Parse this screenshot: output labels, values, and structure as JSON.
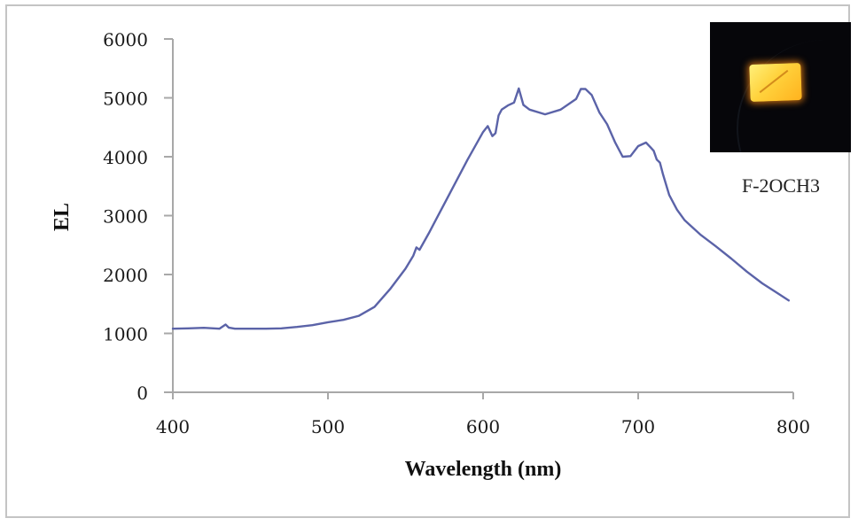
{
  "chart_data": {
    "type": "line",
    "title": "",
    "xlabel": "Wavelength (nm)",
    "ylabel": "EL",
    "xlim": [
      400,
      800
    ],
    "ylim": [
      0,
      6000
    ],
    "x_ticks": [
      400,
      500,
      600,
      700,
      800
    ],
    "y_ticks": [
      0,
      1000,
      2000,
      3000,
      4000,
      5000,
      6000
    ],
    "x_tick_labels": [
      "400",
      "500",
      "600",
      "700",
      "800"
    ],
    "y_tick_labels": [
      "0",
      "1000",
      "2000",
      "3000",
      "4000",
      "5000",
      "6000"
    ],
    "grid": false,
    "legend": null,
    "series": [
      {
        "name": "F-2OCH3",
        "color": "#5b63a8",
        "x": [
          400,
          410,
          420,
          430,
          434,
          436,
          440,
          450,
          460,
          470,
          480,
          490,
          500,
          510,
          520,
          530,
          540,
          550,
          555,
          557,
          559,
          565,
          570,
          580,
          590,
          600,
          603,
          606,
          608,
          610,
          612,
          616,
          620,
          623,
          626,
          630,
          640,
          650,
          660,
          663,
          666,
          670,
          675,
          680,
          685,
          690,
          695,
          700,
          705,
          708,
          710,
          712,
          714,
          716,
          720,
          725,
          730,
          740,
          750,
          760,
          770,
          780,
          790,
          797
        ],
        "y": [
          1080,
          1085,
          1095,
          1080,
          1150,
          1100,
          1080,
          1080,
          1080,
          1085,
          1110,
          1140,
          1190,
          1230,
          1300,
          1450,
          1750,
          2100,
          2320,
          2460,
          2420,
          2700,
          2950,
          3450,
          3950,
          4420,
          4520,
          4350,
          4400,
          4700,
          4800,
          4870,
          4920,
          5160,
          4880,
          4800,
          4720,
          4800,
          4980,
          5150,
          5150,
          5050,
          4750,
          4550,
          4250,
          4000,
          4010,
          4180,
          4240,
          4160,
          4100,
          3950,
          3900,
          3700,
          3350,
          3100,
          2920,
          2680,
          2480,
          2270,
          2050,
          1850,
          1680,
          1560
        ]
      }
    ],
    "annotations": [
      {
        "text": "F-2OCH3",
        "placement": "top-right",
        "type": "inset-photo-caption"
      }
    ]
  },
  "inset": {
    "caption": "F-2OCH3",
    "photo": "glowing-device-photo"
  }
}
